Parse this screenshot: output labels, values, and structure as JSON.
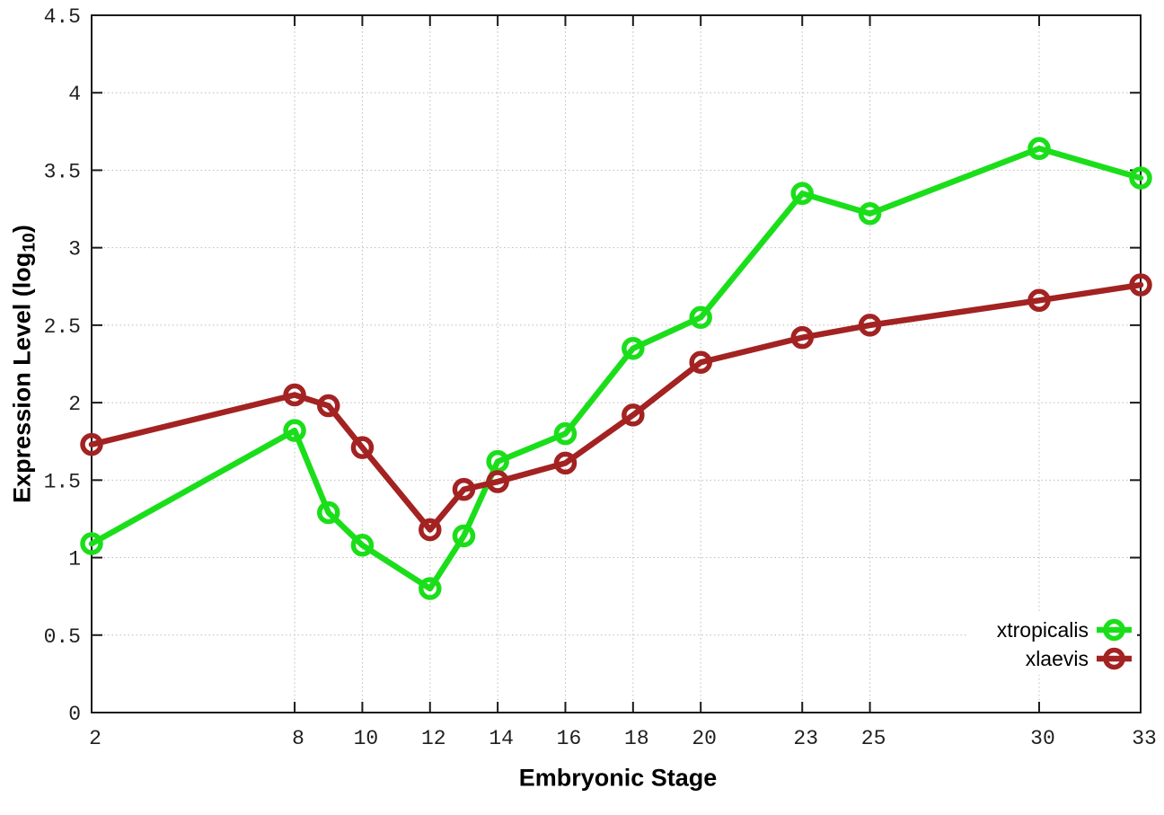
{
  "chart_data": {
    "type": "line",
    "title": "",
    "xlabel": "Embryonic Stage",
    "ylabel": "Expression Level (log10)",
    "ylabel_parts": {
      "prefix": "Expression Level (log",
      "sub": "10",
      "suffix": ")"
    },
    "xlim": [
      2,
      33
    ],
    "ylim": [
      0,
      4.5
    ],
    "xticks": [
      2,
      8,
      10,
      12,
      14,
      16,
      18,
      20,
      23,
      25,
      30,
      33
    ],
    "xtick_labels": [
      "2",
      "8",
      "10",
      "12",
      "14",
      "16",
      "18",
      "20",
      "23",
      "25",
      "30",
      "33"
    ],
    "yticks": [
      0,
      0.5,
      1,
      1.5,
      2,
      2.5,
      3,
      3.5,
      4,
      4.5
    ],
    "ytick_labels": [
      "0",
      "0.5",
      "1",
      "1.5",
      "2",
      "2.5",
      "3",
      "3.5",
      "4",
      "4.5"
    ],
    "grid": true,
    "legend_position": "bottom-right",
    "x": [
      2,
      8,
      9,
      10,
      12,
      13,
      14,
      16,
      18,
      20,
      23,
      25,
      30,
      33
    ],
    "series": [
      {
        "name": "xtropicalis",
        "color": "#1BDE1B",
        "values": [
          1.09,
          1.82,
          1.29,
          1.08,
          0.8,
          1.14,
          1.62,
          1.8,
          2.35,
          2.55,
          3.35,
          3.22,
          3.64,
          3.45
        ]
      },
      {
        "name": "xlaevis",
        "color": "#A32222",
        "values": [
          1.73,
          2.05,
          1.98,
          1.71,
          1.18,
          1.44,
          1.49,
          1.61,
          1.92,
          2.26,
          2.42,
          2.5,
          2.66,
          2.76
        ]
      }
    ],
    "colors": {
      "background": "#ffffff",
      "axis": "#1a1a1a",
      "grid": "#bcbcbc",
      "xtropicalis": "#1BDE1B",
      "xlaevis": "#A32222"
    }
  }
}
